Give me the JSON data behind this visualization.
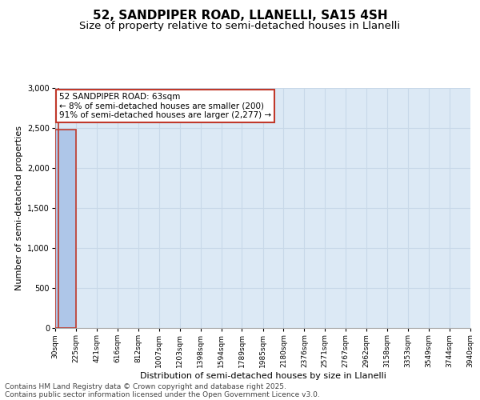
{
  "title_line1": "52, SANDPIPER ROAD, LLANELLI, SA15 4SH",
  "title_line2": "Size of property relative to semi-detached houses in Llanelli",
  "xlabel": "Distribution of semi-detached houses by size in Llanelli",
  "ylabel": "Number of semi-detached properties",
  "annotation_title": "52 SANDPIPER ROAD: 63sqm",
  "annotation_line2": "← 8% of semi-detached houses are smaller (200)",
  "annotation_line3": "91% of semi-detached houses are larger (2,277) →",
  "footer_line1": "Contains HM Land Registry data © Crown copyright and database right 2025.",
  "footer_line2": "Contains public sector information licensed under the Open Government Licence v3.0.",
  "property_size": 63,
  "bin_edges": [
    30,
    225,
    421,
    616,
    812,
    1007,
    1203,
    1398,
    1594,
    1789,
    1985,
    2180,
    2376,
    2571,
    2767,
    2962,
    3158,
    3353,
    3549,
    3744,
    3940
  ],
  "bin_labels": [
    "30sqm",
    "225sqm",
    "421sqm",
    "616sqm",
    "812sqm",
    "1007sqm",
    "1203sqm",
    "1398sqm",
    "1594sqm",
    "1789sqm",
    "1985sqm",
    "2180sqm",
    "2376sqm",
    "2571sqm",
    "2767sqm",
    "2962sqm",
    "3158sqm",
    "3353sqm",
    "3549sqm",
    "3744sqm",
    "3940sqm"
  ],
  "bar_heights": [
    2477,
    0,
    0,
    0,
    0,
    0,
    0,
    0,
    0,
    0,
    0,
    0,
    0,
    0,
    0,
    0,
    0,
    0,
    0,
    0
  ],
  "bar_color": "#aec6e8",
  "bar_edgecolor": "#5a9fd4",
  "highlight_bar_index": 0,
  "highlight_bar_edgecolor": "#c0392b",
  "vline_x": 63,
  "vline_color": "#c0392b",
  "annotation_box_color": "#c0392b",
  "ylim": [
    0,
    3000
  ],
  "yticks": [
    0,
    500,
    1000,
    1500,
    2000,
    2500,
    3000
  ],
  "grid_color": "#c8d8e8",
  "bg_color": "#dce9f5",
  "fig_bg_color": "#ffffff",
  "title_fontsize": 11,
  "subtitle_fontsize": 9.5,
  "tick_fontsize": 6.5,
  "ylabel_fontsize": 8,
  "xlabel_fontsize": 8,
  "footer_fontsize": 6.5,
  "ann_fontsize": 7.5
}
